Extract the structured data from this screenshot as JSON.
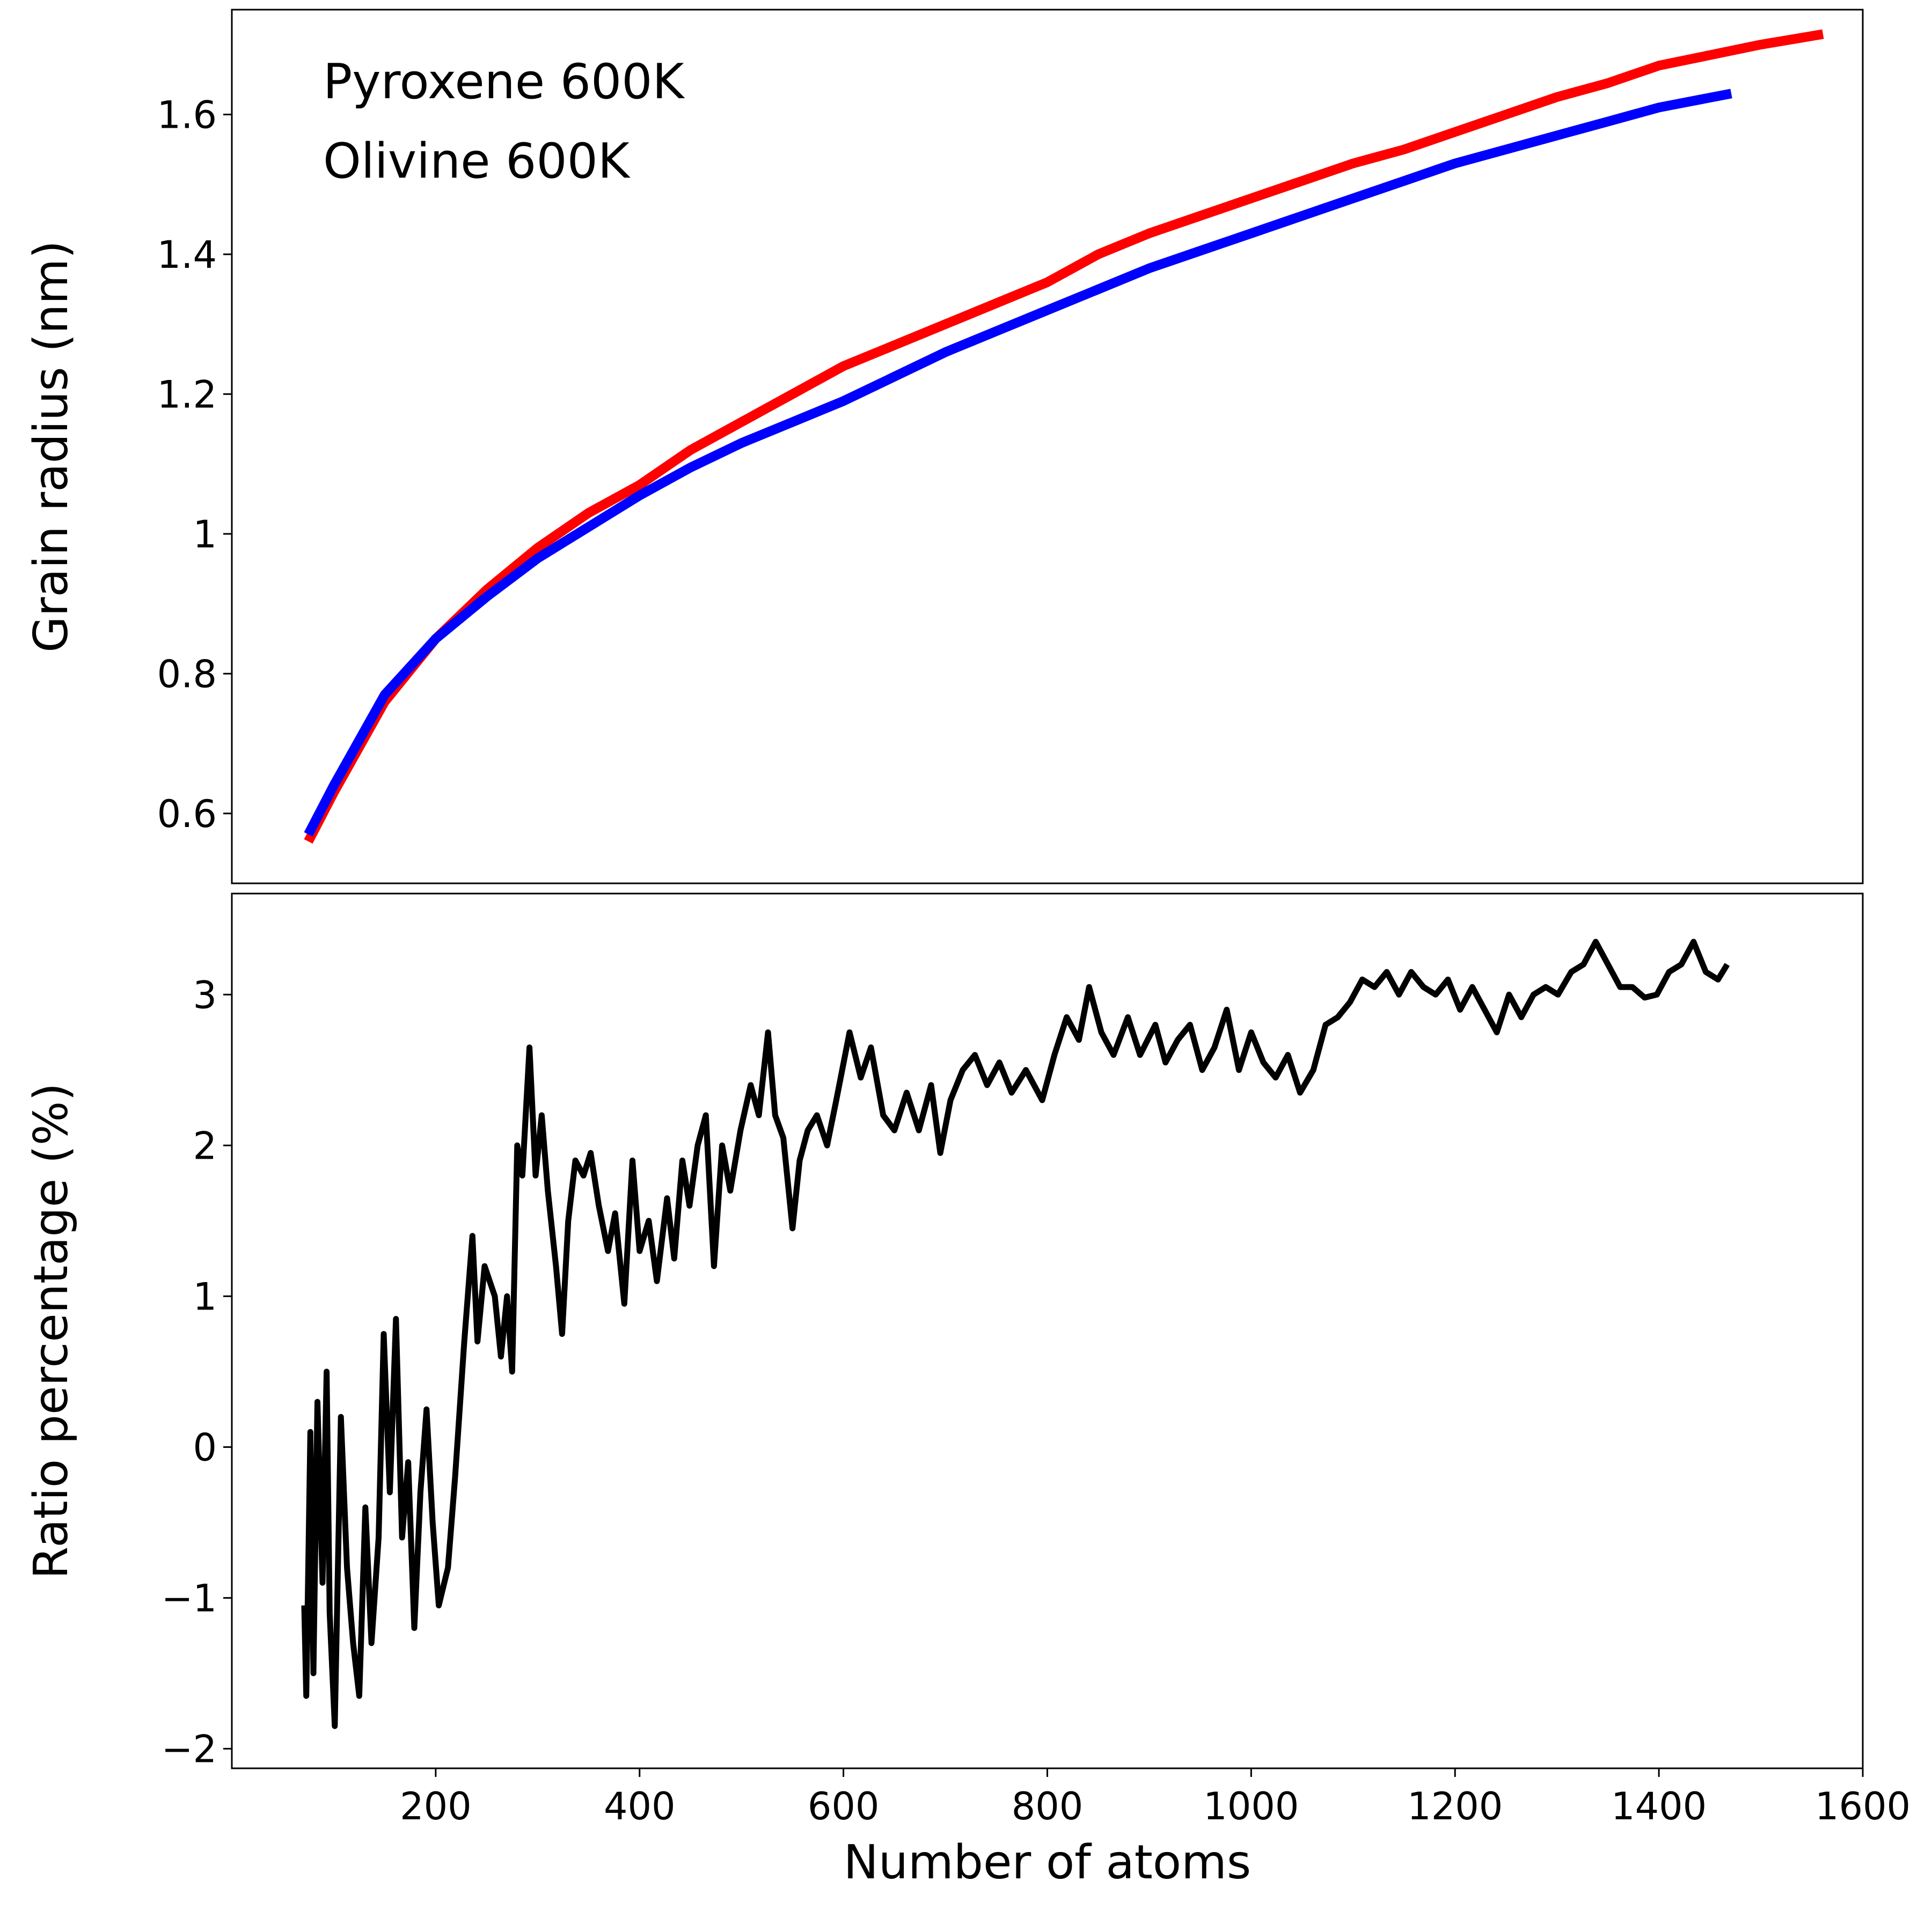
{
  "chart_data": [
    {
      "type": "line",
      "y_label": "Grain radius (nm)",
      "xlim": [
        0,
        1600
      ],
      "ylim": [
        0.5,
        1.75
      ],
      "yticks": [
        0.6,
        0.8,
        1.0,
        1.2,
        1.4,
        1.6
      ],
      "legend": "upper left",
      "series": [
        {
          "name": "Pyroxene 600K",
          "color": "#ff0000",
          "x": [
            75,
            100,
            150,
            200,
            250,
            300,
            350,
            400,
            450,
            500,
            550,
            600,
            650,
            700,
            750,
            800,
            850,
            900,
            950,
            1000,
            1050,
            1100,
            1150,
            1200,
            1250,
            1300,
            1350,
            1400,
            1450,
            1500,
            1561
          ],
          "values": [
            0.56,
            0.63,
            0.76,
            0.85,
            0.92,
            0.98,
            1.03,
            1.07,
            1.12,
            1.16,
            1.2,
            1.24,
            1.27,
            1.3,
            1.33,
            1.36,
            1.4,
            1.43,
            1.455,
            1.48,
            1.505,
            1.53,
            1.55,
            1.575,
            1.6,
            1.625,
            1.645,
            1.67,
            1.685,
            1.7,
            1.715
          ]
        },
        {
          "name": "Olivine 600K",
          "color": "#0000ff",
          "x": [
            75,
            100,
            150,
            200,
            250,
            300,
            350,
            400,
            450,
            500,
            550,
            600,
            650,
            700,
            750,
            800,
            850,
            900,
            950,
            1000,
            1050,
            1100,
            1150,
            1200,
            1250,
            1300,
            1350,
            1400,
            1471
          ],
          "values": [
            0.57,
            0.64,
            0.77,
            0.85,
            0.91,
            0.965,
            1.01,
            1.055,
            1.095,
            1.13,
            1.16,
            1.19,
            1.225,
            1.26,
            1.29,
            1.32,
            1.35,
            1.38,
            1.405,
            1.43,
            1.455,
            1.48,
            1.505,
            1.53,
            1.55,
            1.57,
            1.59,
            1.61,
            1.63
          ]
        }
      ]
    },
    {
      "type": "line",
      "x_label": "Number of atoms",
      "y_label": "Ratio percentage (%)",
      "xlim": [
        0,
        1600
      ],
      "ylim": [
        -2.13,
        3.67
      ],
      "xticks": [
        200,
        400,
        600,
        800,
        1000,
        1200,
        1400,
        1600
      ],
      "yticks": [
        {
          "value": -2,
          "label": "−2"
        },
        {
          "value": -1,
          "label": "−1"
        },
        0,
        1,
        2,
        3
      ],
      "series": [
        {
          "color": "#000000",
          "x": [
            71,
            73,
            77,
            80,
            84,
            89,
            93,
            96,
            101,
            107,
            113,
            119,
            125,
            131,
            137,
            144,
            149,
            155,
            161,
            167,
            173,
            179,
            185,
            191,
            197,
            203,
            212,
            219,
            228,
            236,
            241,
            248,
            258,
            264,
            270,
            275,
            280,
            285,
            292,
            298,
            304,
            310,
            318,
            324,
            330,
            337,
            345,
            352,
            360,
            369,
            376,
            385,
            393,
            400,
            409,
            417,
            427,
            434,
            442,
            449,
            457,
            465,
            473,
            481,
            489,
            499,
            509,
            517,
            526,
            533,
            541,
            550,
            557,
            565,
            574,
            584,
            593,
            606,
            617,
            627,
            639,
            650,
            662,
            674,
            686,
            695,
            705,
            717,
            729,
            741,
            753,
            765,
            779,
            795,
            807,
            819,
            831,
            841,
            853,
            865,
            879,
            891,
            906,
            916,
            928,
            940,
            952,
            964,
            976,
            988,
            1000,
            1012,
            1024,
            1036,
            1048,
            1061,
            1073,
            1085,
            1097,
            1109,
            1121,
            1133,
            1145,
            1157,
            1169,
            1181,
            1193,
            1205,
            1217,
            1229,
            1241,
            1253,
            1265,
            1277,
            1289,
            1301,
            1314,
            1326,
            1338,
            1350,
            1362,
            1374,
            1386,
            1398,
            1410,
            1422,
            1434,
            1446,
            1458,
            1467
          ],
          "values": [
            -1.05,
            -1.65,
            0.1,
            -1.5,
            0.3,
            -0.9,
            0.5,
            -1.1,
            -1.85,
            0.2,
            -0.8,
            -1.3,
            -1.65,
            -0.4,
            -1.3,
            -0.6,
            0.75,
            -0.3,
            0.85,
            -0.6,
            -0.1,
            -1.2,
            -0.3,
            0.25,
            -0.5,
            -1.05,
            -0.8,
            -0.2,
            0.7,
            1.4,
            0.7,
            1.2,
            1.0,
            0.6,
            1.0,
            0.5,
            2.0,
            1.8,
            2.65,
            1.8,
            2.2,
            1.7,
            1.2,
            0.75,
            1.5,
            1.9,
            1.8,
            1.95,
            1.6,
            1.3,
            1.55,
            0.95,
            1.9,
            1.3,
            1.5,
            1.1,
            1.65,
            1.25,
            1.9,
            1.6,
            2.0,
            2.2,
            1.2,
            2.0,
            1.7,
            2.1,
            2.4,
            2.2,
            2.75,
            2.2,
            2.05,
            1.45,
            1.9,
            2.1,
            2.2,
            2.0,
            2.3,
            2.75,
            2.45,
            2.65,
            2.2,
            2.1,
            2.35,
            2.1,
            2.4,
            1.95,
            2.3,
            2.5,
            2.6,
            2.4,
            2.55,
            2.35,
            2.5,
            2.3,
            2.6,
            2.85,
            2.7,
            3.05,
            2.75,
            2.6,
            2.85,
            2.6,
            2.8,
            2.55,
            2.7,
            2.8,
            2.5,
            2.65,
            2.9,
            2.5,
            2.75,
            2.55,
            2.45,
            2.6,
            2.35,
            2.5,
            2.8,
            2.85,
            2.95,
            3.1,
            3.05,
            3.15,
            3.0,
            3.15,
            3.05,
            3.0,
            3.1,
            2.9,
            3.05,
            2.9,
            2.75,
            3.0,
            2.85,
            3.0,
            3.05,
            3.0,
            3.15,
            3.2,
            3.35,
            3.2,
            3.05,
            3.05,
            2.98,
            3.0,
            3.15,
            3.2,
            3.35,
            3.15,
            3.1,
            3.2
          ]
        }
      ]
    }
  ]
}
